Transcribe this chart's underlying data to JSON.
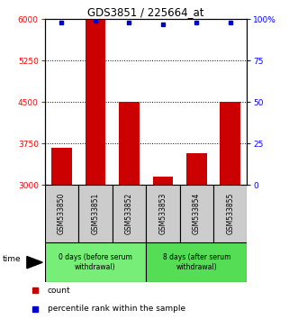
{
  "title": "GDS3851 / 225664_at",
  "samples": [
    "GSM533850",
    "GSM533851",
    "GSM533852",
    "GSM533853",
    "GSM533854",
    "GSM533855"
  ],
  "counts": [
    3680,
    5980,
    4500,
    3150,
    3580,
    4500
  ],
  "percentiles": [
    98,
    99,
    98,
    97,
    98,
    98
  ],
  "ylim_left": [
    3000,
    6000
  ],
  "ylim_right": [
    0,
    100
  ],
  "yticks_left": [
    3000,
    3750,
    4500,
    5250,
    6000
  ],
  "yticks_right": [
    0,
    25,
    50,
    75,
    100
  ],
  "bar_color": "#cc0000",
  "percentile_color": "#0000cc",
  "gridline_y": [
    3750,
    4500,
    5250
  ],
  "groups": [
    {
      "label": "0 days (before serum\nwithdrawal)",
      "samples": [
        0,
        1,
        2
      ],
      "color": "#77ee77"
    },
    {
      "label": "8 days (after serum\nwithdrawal)",
      "samples": [
        3,
        4,
        5
      ],
      "color": "#55dd55"
    }
  ],
  "xlabel_time": "time",
  "legend_count": "count",
  "legend_percentile": "percentile rank within the sample",
  "background_color": "#ffffff",
  "sample_box_color": "#cccccc",
  "bar_width": 0.6
}
